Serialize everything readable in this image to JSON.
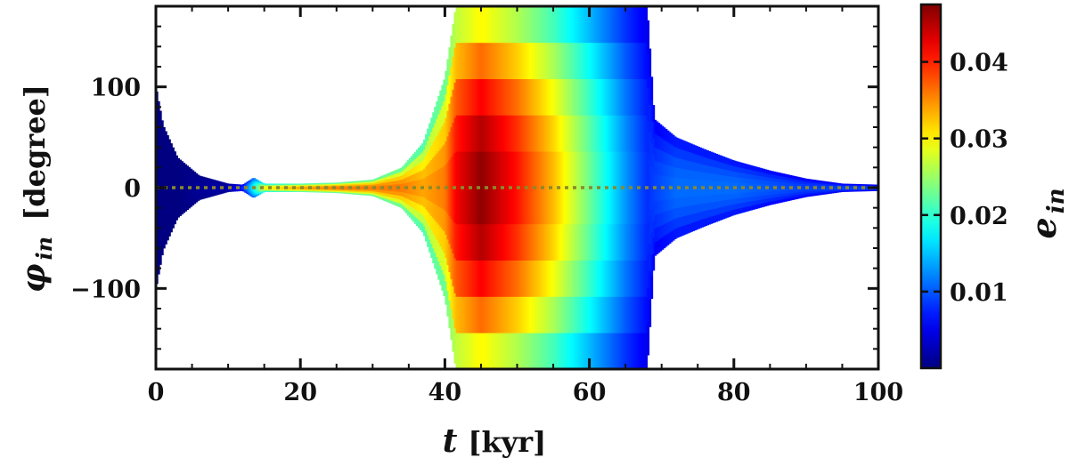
{
  "chart_data": {
    "type": "scatter",
    "title": "",
    "xlabel": {
      "var": "t",
      "unit": "[kyr]"
    },
    "ylabel": {
      "var": "φ",
      "sub": "in",
      "unit": "[degree]"
    },
    "colorbar_label": {
      "var": "e",
      "sub": "in"
    },
    "xlim": [
      0,
      100
    ],
    "ylim": [
      -180,
      180
    ],
    "x_ticks": [
      0,
      20,
      40,
      60,
      80,
      100
    ],
    "x_tick_labels": [
      "0",
      "20",
      "40",
      "60",
      "80",
      "100"
    ],
    "y_ticks": [
      -100,
      0,
      100
    ],
    "y_tick_labels": [
      "−100",
      "0",
      "100"
    ],
    "colorbar": {
      "range": [
        0.0,
        0.0475
      ],
      "ticks": [
        0.01,
        0.02,
        0.03,
        0.04
      ],
      "tick_labels": [
        "0.01",
        "0.02",
        "0.03",
        "0.04"
      ],
      "colormap": "jet"
    },
    "reference_line": {
      "y": 0,
      "style": "dotted",
      "color": "#8a8a2a"
    },
    "envelope": [
      {
        "t": 0,
        "amp": 100,
        "e": 0.0
      },
      {
        "t": 1,
        "amp": 62,
        "e": 0.0
      },
      {
        "t": 3,
        "amp": 30,
        "e": 0.0
      },
      {
        "t": 6,
        "amp": 12,
        "e": 0.001
      },
      {
        "t": 10,
        "amp": 4,
        "e": 0.002
      },
      {
        "t": 12,
        "amp": 3,
        "e": 0.008
      },
      {
        "t": 13.5,
        "amp": 10,
        "e": 0.018
      },
      {
        "t": 15,
        "amp": 4,
        "e": 0.03
      },
      {
        "t": 20,
        "amp": 4,
        "e": 0.034
      },
      {
        "t": 25,
        "amp": 5,
        "e": 0.036
      },
      {
        "t": 30,
        "amp": 8,
        "e": 0.036
      },
      {
        "t": 34,
        "amp": 20,
        "e": 0.036
      },
      {
        "t": 37,
        "amp": 45,
        "e": 0.034
      },
      {
        "t": 40,
        "amp": 110,
        "e": 0.036
      },
      {
        "t": 41.5,
        "amp": 180,
        "e": 0.042
      },
      {
        "t": 45,
        "amp": 180,
        "e": 0.047
      },
      {
        "t": 50,
        "amp": 180,
        "e": 0.041
      },
      {
        "t": 55,
        "amp": 180,
        "e": 0.033
      },
      {
        "t": 60,
        "amp": 180,
        "e": 0.023
      },
      {
        "t": 65,
        "amp": 180,
        "e": 0.013
      },
      {
        "t": 68,
        "amp": 180,
        "e": 0.008
      },
      {
        "t": 69,
        "amp": 68,
        "e": 0.009
      },
      {
        "t": 72,
        "amp": 50,
        "e": 0.011
      },
      {
        "t": 76,
        "amp": 38,
        "e": 0.011
      },
      {
        "t": 80,
        "amp": 27,
        "e": 0.011
      },
      {
        "t": 85,
        "amp": 17,
        "e": 0.01
      },
      {
        "t": 90,
        "amp": 9,
        "e": 0.009
      },
      {
        "t": 95,
        "amp": 4,
        "e": 0.009
      },
      {
        "t": 100,
        "amp": 3,
        "e": 0.009
      }
    ]
  }
}
